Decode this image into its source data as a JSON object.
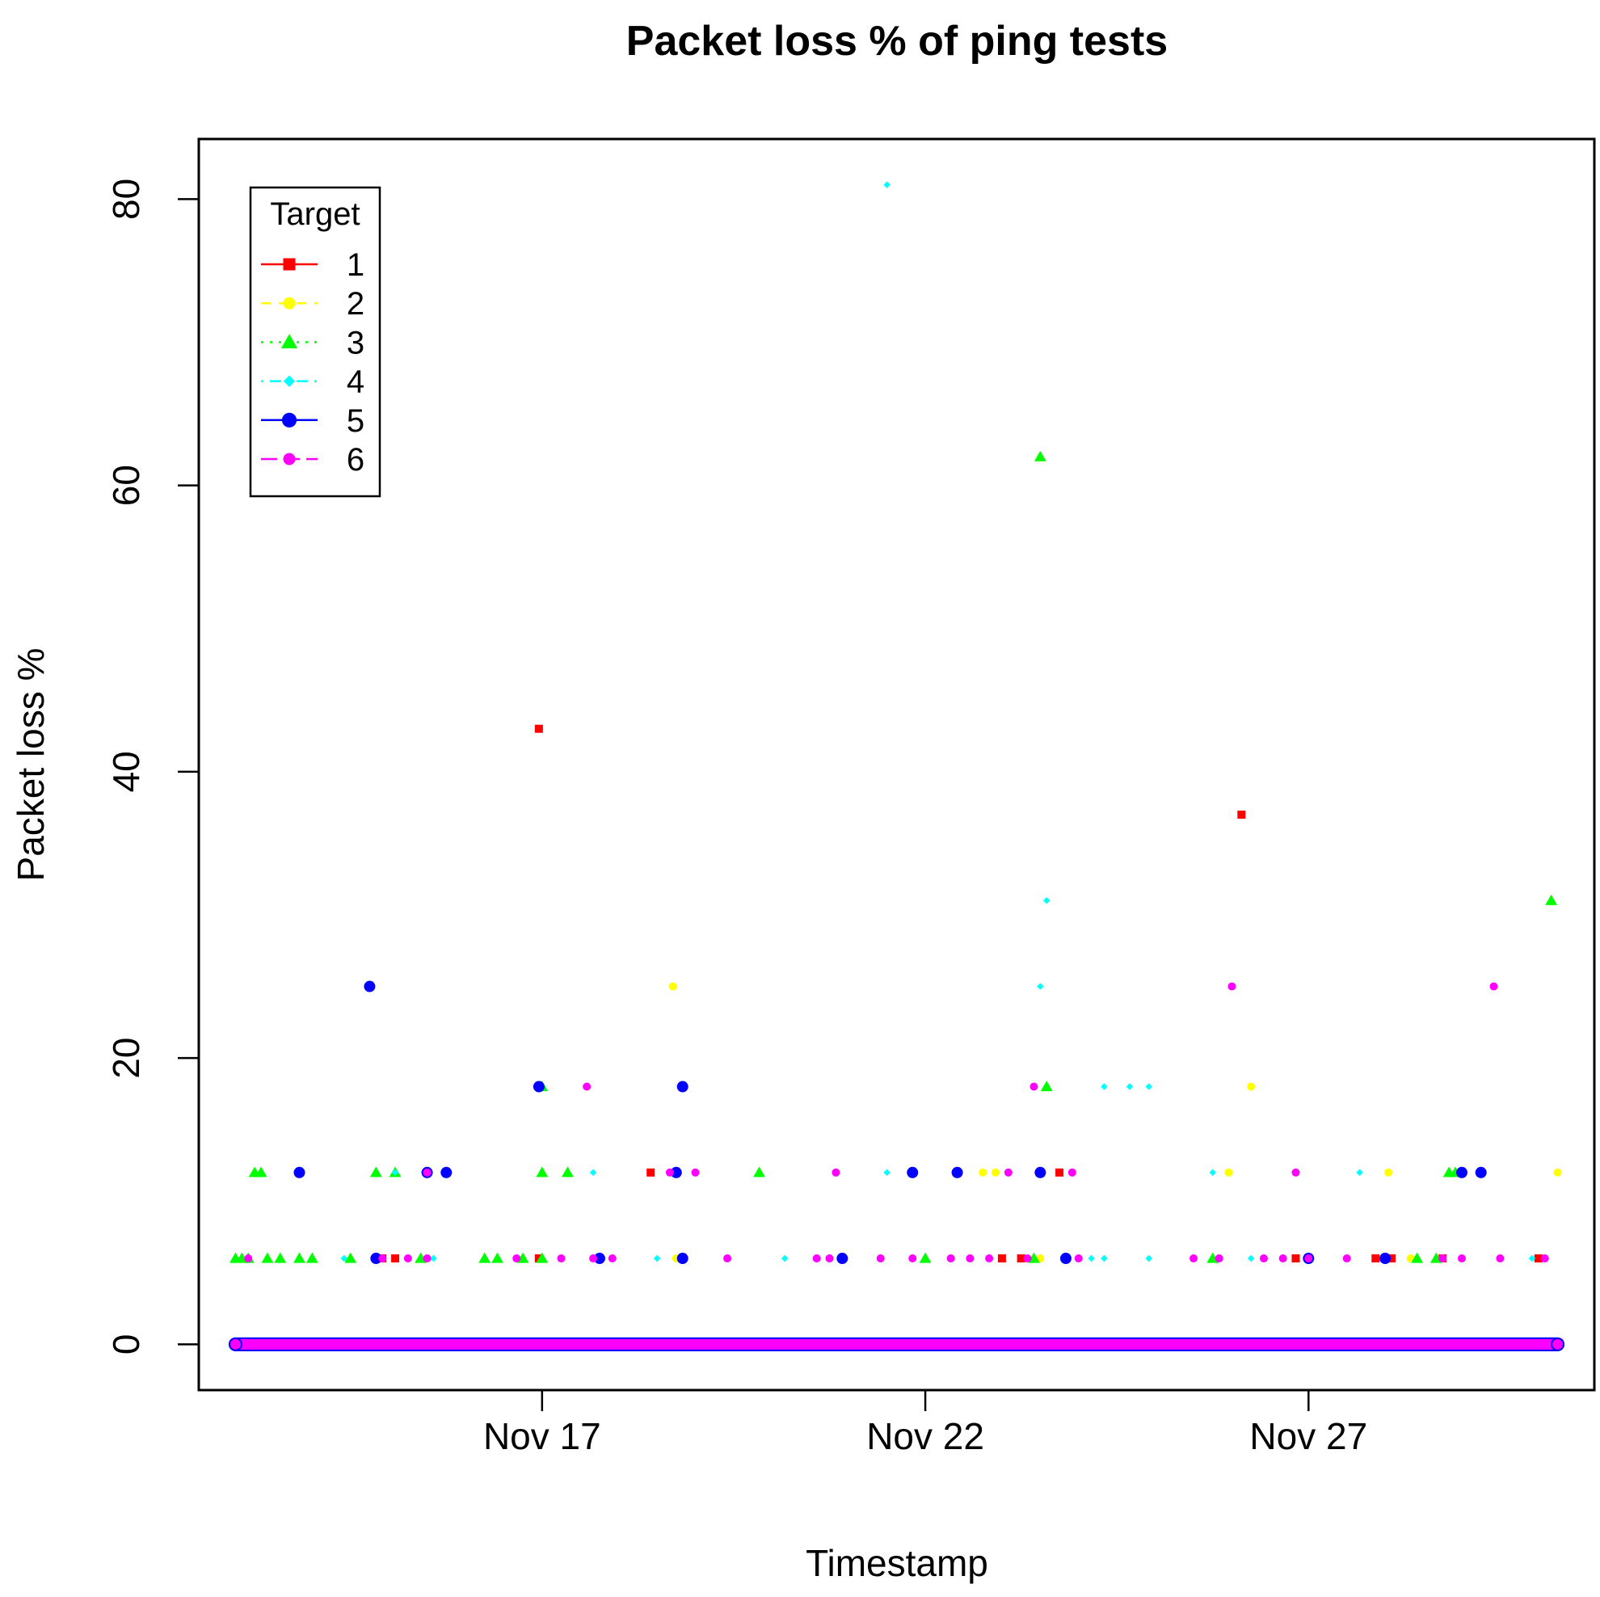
{
  "chart_data": {
    "type": "scatter",
    "title": "Packet loss % of ping tests",
    "xlabel": "Timestamp",
    "ylabel": "Packet loss %",
    "x_axis": {
      "kind": "date",
      "ticks": [
        "Nov 17",
        "Nov 22",
        "Nov 27"
      ],
      "range": [
        "Nov 12 12:30",
        "Nov 30 17:30"
      ]
    },
    "y_axis": {
      "ticks": [
        0,
        20,
        40,
        60,
        80
      ],
      "range": [
        -3.2,
        84.2
      ]
    },
    "grid": false,
    "legend": {
      "title": "Target",
      "position": "top-left",
      "entries": [
        {
          "label": "1",
          "color": "#FF0000",
          "marker": "square",
          "line": "solid"
        },
        {
          "label": "2",
          "color": "#FFFF00",
          "marker": "circle",
          "line": "dashed"
        },
        {
          "label": "3",
          "color": "#00FF00",
          "marker": "triangle",
          "line": "dotted"
        },
        {
          "label": "4",
          "color": "#00FFFF",
          "marker": "diamond",
          "line": "dotdash"
        },
        {
          "label": "5",
          "color": "#0000FF",
          "marker": "circle-large",
          "line": "solid"
        },
        {
          "label": "6",
          "color": "#FF00FF",
          "marker": "circle",
          "line": "longdash"
        }
      ]
    },
    "baseline": {
      "y": 0,
      "from": "Nov 13 00:00",
      "to": "Nov 30 06:00",
      "note_series": [
        "1",
        "2",
        "3",
        "4",
        "5",
        "6"
      ]
    },
    "series": [
      {
        "name": "1",
        "points": [
          [
            "Nov 16 23:00",
            43
          ],
          [
            "Nov 26 03:00",
            37
          ],
          [
            "Nov 14 22:00",
            6
          ],
          [
            "Nov 15 02:00",
            6
          ],
          [
            "Nov 16 23:00",
            6
          ],
          [
            "Nov 18 10:00",
            12
          ],
          [
            "Nov 23 00:00",
            6
          ],
          [
            "Nov 23 06:00",
            6
          ],
          [
            "Nov 23 18:00",
            12
          ],
          [
            "Nov 26 20:00",
            6
          ],
          [
            "Nov 27 21:00",
            6
          ],
          [
            "Nov 28 02:00",
            6
          ],
          [
            "Nov 28 18:00",
            6
          ],
          [
            "Nov 30 00:00",
            6
          ]
        ]
      },
      {
        "name": "2",
        "points": [
          [
            "Nov 18 17:00",
            25
          ],
          [
            "Nov 26 06:00",
            18
          ],
          [
            "Nov 22 18:00",
            12
          ],
          [
            "Nov 22 22:00",
            12
          ],
          [
            "Nov 25 23:00",
            12
          ],
          [
            "Nov 28 01:00",
            12
          ],
          [
            "Nov 30 06:00",
            12
          ],
          [
            "Nov 18 18:00",
            6
          ],
          [
            "Nov 23 12:00",
            6
          ],
          [
            "Nov 28 08:00",
            6
          ],
          [
            "Nov 28 18:00",
            6
          ]
        ]
      },
      {
        "name": "3",
        "points": [
          [
            "Nov 23 12:00",
            62
          ],
          [
            "Nov 30 04:00",
            31
          ],
          [
            "Nov 17 00:00",
            18
          ],
          [
            "Nov 23 14:00",
            18
          ],
          [
            "Nov 13 06:00",
            12
          ],
          [
            "Nov 13 08:00",
            12
          ],
          [
            "Nov 14 20:00",
            12
          ],
          [
            "Nov 15 02:00",
            12
          ],
          [
            "Nov 17 00:00",
            12
          ],
          [
            "Nov 17 08:00",
            12
          ],
          [
            "Nov 19 20:00",
            12
          ],
          [
            "Nov 28 20:00",
            12
          ],
          [
            "Nov 28 22:00",
            12
          ],
          [
            "Nov 13 00:00",
            6
          ],
          [
            "Nov 13 02:00",
            6
          ],
          [
            "Nov 13 04:00",
            6
          ],
          [
            "Nov 13 10:00",
            6
          ],
          [
            "Nov 13 14:00",
            6
          ],
          [
            "Nov 13 20:00",
            6
          ],
          [
            "Nov 14 00:00",
            6
          ],
          [
            "Nov 14 12:00",
            6
          ],
          [
            "Nov 15 10:00",
            6
          ],
          [
            "Nov 16 06:00",
            6
          ],
          [
            "Nov 16 10:00",
            6
          ],
          [
            "Nov 16 18:00",
            6
          ],
          [
            "Nov 17 00:00",
            6
          ],
          [
            "Nov 22 00:00",
            6
          ],
          [
            "Nov 23 10:00",
            6
          ],
          [
            "Nov 25 18:00",
            6
          ],
          [
            "Nov 28 10:00",
            6
          ],
          [
            "Nov 28 16:00",
            6
          ]
        ]
      },
      {
        "name": "4",
        "points": [
          [
            "Nov 21 12:00",
            81
          ],
          [
            "Nov 23 14:00",
            31
          ],
          [
            "Nov 23 12:00",
            25
          ],
          [
            "Nov 24 08:00",
            18
          ],
          [
            "Nov 24 16:00",
            18
          ],
          [
            "Nov 24 22:00",
            18
          ],
          [
            "Nov 15 02:00",
            12
          ],
          [
            "Nov 17 16:00",
            12
          ],
          [
            "Nov 21 12:00",
            12
          ],
          [
            "Nov 25 18:00",
            12
          ],
          [
            "Nov 27 16:00",
            12
          ],
          [
            "Nov 14 10:00",
            6
          ],
          [
            "Nov 15 14:00",
            6
          ],
          [
            "Nov 18 12:00",
            6
          ],
          [
            "Nov 20 04:00",
            6
          ],
          [
            "Nov 20 22:00",
            6
          ],
          [
            "Nov 24 04:00",
            6
          ],
          [
            "Nov 24 08:00",
            6
          ],
          [
            "Nov 24 22:00",
            6
          ],
          [
            "Nov 26 06:00",
            6
          ],
          [
            "Nov 27 00:00",
            6
          ],
          [
            "Nov 29 22:00",
            6
          ]
        ]
      },
      {
        "name": "5",
        "points": [
          [
            "Nov 14 18:00",
            25
          ],
          [
            "Nov 16 23:00",
            18
          ],
          [
            "Nov 18 20:00",
            18
          ],
          [
            "Nov 13 20:00",
            12
          ],
          [
            "Nov 15 12:00",
            12
          ],
          [
            "Nov 15 18:00",
            12
          ],
          [
            "Nov 18 18:00",
            12
          ],
          [
            "Nov 21 20:00",
            12
          ],
          [
            "Nov 22 10:00",
            12
          ],
          [
            "Nov 23 12:00",
            12
          ],
          [
            "Nov 29 00:00",
            12
          ],
          [
            "Nov 29 06:00",
            12
          ],
          [
            "Nov 14 20:00",
            6
          ],
          [
            "Nov 17 18:00",
            6
          ],
          [
            "Nov 18 20:00",
            6
          ],
          [
            "Nov 20 22:00",
            6
          ],
          [
            "Nov 23 20:00",
            6
          ],
          [
            "Nov 27 00:00",
            6
          ],
          [
            "Nov 28 00:00",
            6
          ]
        ]
      },
      {
        "name": "6",
        "points": [
          [
            "Nov 26 00:00",
            25
          ],
          [
            "Nov 29 10:00",
            25
          ],
          [
            "Nov 17 14:00",
            18
          ],
          [
            "Nov 23 10:00",
            18
          ],
          [
            "Nov 15 12:00",
            12
          ],
          [
            "Nov 18 16:00",
            12
          ],
          [
            "Nov 19 00:00",
            12
          ],
          [
            "Nov 20 20:00",
            12
          ],
          [
            "Nov 23 02:00",
            12
          ],
          [
            "Nov 23 22:00",
            12
          ],
          [
            "Nov 26 20:00",
            12
          ],
          [
            "Nov 13 04:00",
            6
          ],
          [
            "Nov 14 22:00",
            6
          ],
          [
            "Nov 15 06:00",
            6
          ],
          [
            "Nov 15 12:00",
            6
          ],
          [
            "Nov 16 16:00",
            6
          ],
          [
            "Nov 17 06:00",
            6
          ],
          [
            "Nov 17 16:00",
            6
          ],
          [
            "Nov 17 22:00",
            6
          ],
          [
            "Nov 19 10:00",
            6
          ],
          [
            "Nov 20 14:00",
            6
          ],
          [
            "Nov 20 18:00",
            6
          ],
          [
            "Nov 21 10:00",
            6
          ],
          [
            "Nov 21 20:00",
            6
          ],
          [
            "Nov 22 08:00",
            6
          ],
          [
            "Nov 22 14:00",
            6
          ],
          [
            "Nov 22 20:00",
            6
          ],
          [
            "Nov 23 08:00",
            6
          ],
          [
            "Nov 24 00:00",
            6
          ],
          [
            "Nov 25 12:00",
            6
          ],
          [
            "Nov 25 20:00",
            6
          ],
          [
            "Nov 26 10:00",
            6
          ],
          [
            "Nov 26 16:00",
            6
          ],
          [
            "Nov 27 00:00",
            6
          ],
          [
            "Nov 27 12:00",
            6
          ],
          [
            "Nov 28 18:00",
            6
          ],
          [
            "Nov 29 00:00",
            6
          ],
          [
            "Nov 29 12:00",
            6
          ],
          [
            "Nov 30 02:00",
            6
          ]
        ]
      }
    ]
  }
}
